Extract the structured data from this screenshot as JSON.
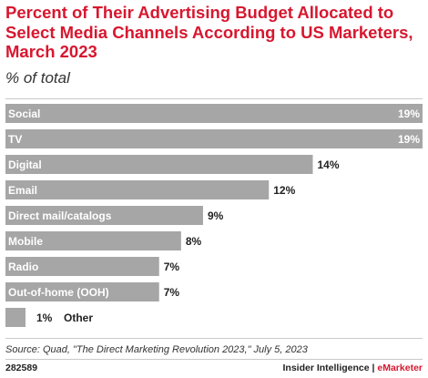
{
  "title": "Percent of Their Advertising Budget Allocated to Select Media Channels According to US Marketers, March 2023",
  "subtitle": "% of total",
  "source": "Source: Quad, \"The Direct Marketing Revolution 2023,\" July 5, 2023",
  "footer": {
    "chart_id": "282589",
    "brand_main": "Insider Intelligence | ",
    "brand_accent": "eMarketer"
  },
  "colors": {
    "accent": "#d7172f",
    "bar": "#a6a6a6"
  },
  "chart_data": {
    "type": "bar",
    "orientation": "horizontal",
    "title": "Percent of Their Advertising Budget Allocated to Select Media Channels According to US Marketers, March 2023",
    "subtitle": "% of total",
    "categories": [
      "Social",
      "TV",
      "Digital",
      "Email",
      "Direct mail/catalogs",
      "Mobile",
      "Radio",
      "Out-of-home (OOH)",
      "Other"
    ],
    "values": [
      19,
      19,
      14,
      12,
      9,
      8,
      7,
      7,
      1
    ],
    "value_labels": [
      "19%",
      "19%",
      "14%",
      "12%",
      "9%",
      "8%",
      "7%",
      "7%",
      "1%"
    ],
    "xlim": [
      0,
      19
    ],
    "grid": false,
    "legend": "none"
  }
}
